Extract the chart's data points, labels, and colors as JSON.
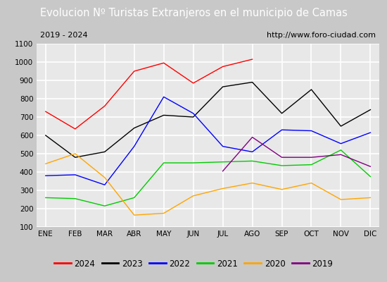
{
  "title": "Evolucion Nº Turistas Extranjeros en el municipio de Camas",
  "subtitle_left": "2019 - 2024",
  "subtitle_right": "http://www.foro-ciudad.com",
  "months": [
    "ENE",
    "FEB",
    "MAR",
    "ABR",
    "MAY",
    "JUN",
    "JUL",
    "AGO",
    "SEP",
    "OCT",
    "NOV",
    "DIC"
  ],
  "ylim": [
    100,
    1100
  ],
  "yticks": [
    100,
    200,
    300,
    400,
    500,
    600,
    700,
    800,
    900,
    1000,
    1100
  ],
  "series": {
    "2024": {
      "color": "red",
      "data": [
        730,
        635,
        760,
        950,
        995,
        885,
        975,
        1015,
        null,
        null,
        null,
        null
      ]
    },
    "2023": {
      "color": "black",
      "data": [
        600,
        480,
        510,
        640,
        710,
        700,
        865,
        890,
        720,
        850,
        650,
        740
      ]
    },
    "2022": {
      "color": "blue",
      "data": [
        380,
        385,
        330,
        540,
        810,
        720,
        540,
        510,
        630,
        625,
        555,
        615
      ]
    },
    "2021": {
      "color": "#00cc00",
      "data": [
        260,
        255,
        215,
        260,
        450,
        450,
        455,
        460,
        435,
        440,
        520,
        375
      ]
    },
    "2020": {
      "color": "orange",
      "data": [
        445,
        500,
        370,
        165,
        175,
        270,
        310,
        340,
        305,
        340,
        250,
        260
      ]
    },
    "2019": {
      "color": "purple",
      "data": [
        null,
        null,
        null,
        null,
        null,
        null,
        405,
        590,
        480,
        480,
        495,
        430
      ]
    }
  },
  "legend_order": [
    "2024",
    "2023",
    "2022",
    "2021",
    "2020",
    "2019"
  ],
  "title_bg_color": "#4a7bc4",
  "title_color": "white",
  "plot_bg_color": "#e8e8e8",
  "outer_bg_color": "#c8c8c8",
  "grid_color": "white",
  "subtitle_box_bg": "#e0e0e0",
  "title_fontsize": 10.5,
  "subtitle_fontsize": 8,
  "tick_fontsize": 7.5,
  "legend_fontsize": 8.5
}
